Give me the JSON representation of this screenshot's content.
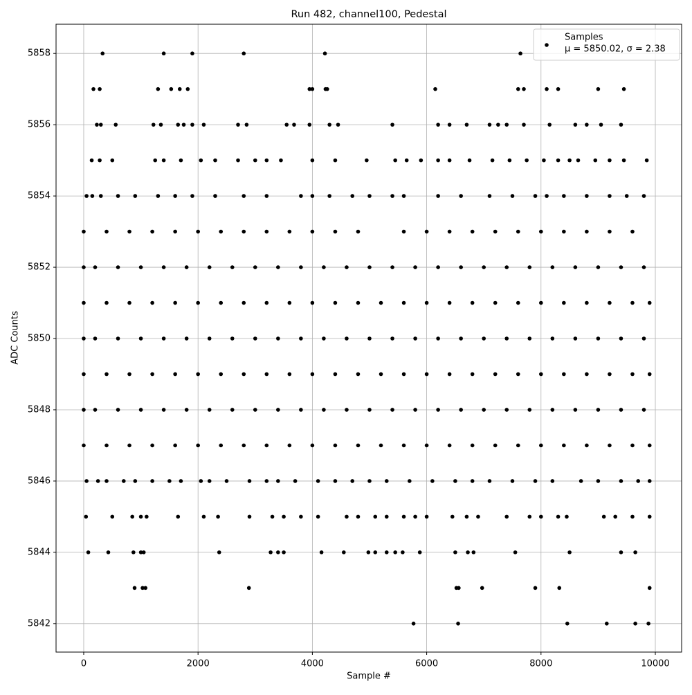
{
  "chart_data": {
    "type": "scatter",
    "title": "Run 482, channel100, Pedestal",
    "x_label": "Sample #",
    "y_label": "ADC Counts",
    "xlim": [
      -484,
      10460
    ],
    "ylim": [
      5841.2,
      5858.82
    ],
    "xticks": [
      0,
      2000,
      4000,
      6000,
      8000,
      10000
    ],
    "yticks": [
      5842,
      5844,
      5846,
      5848,
      5850,
      5852,
      5854,
      5856,
      5858
    ],
    "grid": true,
    "legend": "upper right",
    "series": [
      {
        "name": "Samples",
        "stats": "μ = 5850.02, σ = 2.38",
        "color": "#000000",
        "x": [
          0,
          400,
          800,
          1200,
          1600,
          2000,
          2400,
          2800,
          3200,
          3600,
          4000,
          4400,
          4800,
          5200,
          5600,
          6000,
          6400,
          6800,
          7200,
          7600,
          8000,
          8400,
          8800,
          9200,
          9600,
          9900,
          0,
          400,
          800,
          1200,
          1600,
          2000,
          2400,
          2800,
          3200,
          3600,
          4000,
          4400,
          4800,
          5200,
          5600,
          6000,
          6400,
          6800,
          7200,
          7600,
          8000,
          8400,
          8800,
          9200,
          9600,
          9900,
          0,
          400,
          800,
          1200,
          1600,
          2000,
          2400,
          2800,
          3200,
          3600,
          4000,
          4400,
          4800,
          5200,
          5600,
          6000,
          6400,
          6800,
          7200,
          7600,
          8000,
          8400,
          8800,
          9200,
          9600,
          9900,
          0,
          200,
          600,
          1000,
          1400,
          1800,
          2200,
          2600,
          3000,
          3400,
          3800,
          4200,
          4600,
          5000,
          5400,
          5800,
          6200,
          6600,
          7000,
          7400,
          7800,
          8200,
          8600,
          9000,
          9400,
          9800,
          0,
          200,
          600,
          1000,
          1400,
          1800,
          2200,
          2600,
          3000,
          3400,
          3800,
          4200,
          4600,
          5000,
          5400,
          5800,
          6200,
          6600,
          7000,
          7400,
          7800,
          8200,
          8600,
          9000,
          9400,
          9800,
          0,
          200,
          600,
          1000,
          1400,
          1800,
          2200,
          2600,
          3000,
          3400,
          3800,
          4200,
          4600,
          5000,
          5400,
          5800,
          6200,
          6600,
          7000,
          7400,
          7800,
          8200,
          8600,
          9000,
          9400,
          9800,
          0,
          400,
          800,
          1200,
          1600,
          2000,
          2400,
          2800,
          3200,
          3600,
          4000,
          4400,
          4800,
          5600,
          6000,
          6400,
          6800,
          7200,
          7600,
          8000,
          8400,
          8800,
          9200,
          9600,
          50,
          150,
          300,
          600,
          900,
          1300,
          1600,
          1900,
          2300,
          2800,
          3200,
          3800,
          4000,
          4300,
          4700,
          5000,
          5400,
          5600,
          6200,
          6600,
          7100,
          7500,
          7900,
          8100,
          8400,
          8800,
          9200,
          9500,
          9800,
          50,
          250,
          400,
          700,
          900,
          1200,
          1500,
          1700,
          2050,
          2200,
          2500,
          2900,
          3200,
          3400,
          3700,
          4100,
          4400,
          4700,
          5000,
          5300,
          5700,
          6100,
          6500,
          6800,
          7100,
          7500,
          7900,
          8200,
          8700,
          9000,
          9400,
          9700,
          9900,
          140,
          280,
          500,
          1250,
          1400,
          1700,
          2050,
          2300,
          2700,
          3000,
          3200,
          3450,
          4000,
          4400,
          4950,
          5450,
          5650,
          5900,
          6200,
          6400,
          6750,
          7150,
          7450,
          7750,
          8050,
          8300,
          8500,
          8650,
          8950,
          9200,
          9450,
          9850,
          40,
          500,
          850,
          1000,
          1100,
          1650,
          2100,
          2350,
          2900,
          3300,
          3500,
          3800,
          4100,
          4600,
          4800,
          5100,
          5300,
          5600,
          5800,
          6000,
          6450,
          6700,
          6900,
          7400,
          7800,
          8000,
          8300,
          8450,
          9100,
          9300,
          9600,
          9900,
          230,
          300,
          560,
          1220,
          1350,
          1650,
          1750,
          1900,
          2100,
          2700,
          2850,
          3550,
          3680,
          3950,
          4300,
          4450,
          5400,
          6200,
          6400,
          6700,
          7100,
          7250,
          7400,
          7700,
          8150,
          8600,
          8800,
          9050,
          9400,
          80,
          430,
          870,
          1000,
          1050,
          2370,
          3270,
          3400,
          3500,
          4160,
          4550,
          4980,
          5100,
          5300,
          5450,
          5580,
          5880,
          6500,
          6720,
          6820,
          7550,
          8500,
          9400,
          9650,
          170,
          280,
          1300,
          1530,
          1680,
          1820,
          3950,
          4000,
          4230,
          4260,
          6150,
          7600,
          7700,
          8100,
          8300,
          9000,
          9450,
          330,
          1400,
          1900,
          2800,
          4220,
          7640,
          890,
          1030,
          1080,
          2890,
          6520,
          6560,
          6970,
          7900,
          8320,
          9900,
          5770,
          6550,
          8460,
          9150,
          9650,
          9880
        ],
        "values": [
          5849,
          5849,
          5849,
          5849,
          5849,
          5849,
          5849,
          5849,
          5849,
          5849,
          5849,
          5849,
          5849,
          5849,
          5849,
          5849,
          5849,
          5849,
          5849,
          5849,
          5849,
          5849,
          5849,
          5849,
          5849,
          5849,
          5851,
          5851,
          5851,
          5851,
          5851,
          5851,
          5851,
          5851,
          5851,
          5851,
          5851,
          5851,
          5851,
          5851,
          5851,
          5851,
          5851,
          5851,
          5851,
          5851,
          5851,
          5851,
          5851,
          5851,
          5851,
          5851,
          5847,
          5847,
          5847,
          5847,
          5847,
          5847,
          5847,
          5847,
          5847,
          5847,
          5847,
          5847,
          5847,
          5847,
          5847,
          5847,
          5847,
          5847,
          5847,
          5847,
          5847,
          5847,
          5847,
          5847,
          5847,
          5847,
          5848,
          5848,
          5848,
          5848,
          5848,
          5848,
          5848,
          5848,
          5848,
          5848,
          5848,
          5848,
          5848,
          5848,
          5848,
          5848,
          5848,
          5848,
          5848,
          5848,
          5848,
          5848,
          5848,
          5848,
          5848,
          5848,
          5850,
          5850,
          5850,
          5850,
          5850,
          5850,
          5850,
          5850,
          5850,
          5850,
          5850,
          5850,
          5850,
          5850,
          5850,
          5850,
          5850,
          5850,
          5850,
          5850,
          5850,
          5850,
          5850,
          5850,
          5850,
          5850,
          5852,
          5852,
          5852,
          5852,
          5852,
          5852,
          5852,
          5852,
          5852,
          5852,
          5852,
          5852,
          5852,
          5852,
          5852,
          5852,
          5852,
          5852,
          5852,
          5852,
          5852,
          5852,
          5852,
          5852,
          5852,
          5852,
          5853,
          5853,
          5853,
          5853,
          5853,
          5853,
          5853,
          5853,
          5853,
          5853,
          5853,
          5853,
          5853,
          5853,
          5853,
          5853,
          5853,
          5853,
          5853,
          5853,
          5853,
          5853,
          5853,
          5853,
          5854,
          5854,
          5854,
          5854,
          5854,
          5854,
          5854,
          5854,
          5854,
          5854,
          5854,
          5854,
          5854,
          5854,
          5854,
          5854,
          5854,
          5854,
          5854,
          5854,
          5854,
          5854,
          5854,
          5854,
          5854,
          5854,
          5854,
          5854,
          5854,
          5846,
          5846,
          5846,
          5846,
          5846,
          5846,
          5846,
          5846,
          5846,
          5846,
          5846,
          5846,
          5846,
          5846,
          5846,
          5846,
          5846,
          5846,
          5846,
          5846,
          5846,
          5846,
          5846,
          5846,
          5846,
          5846,
          5846,
          5846,
          5846,
          5846,
          5846,
          5846,
          5846,
          5855,
          5855,
          5855,
          5855,
          5855,
          5855,
          5855,
          5855,
          5855,
          5855,
          5855,
          5855,
          5855,
          5855,
          5855,
          5855,
          5855,
          5855,
          5855,
          5855,
          5855,
          5855,
          5855,
          5855,
          5855,
          5855,
          5855,
          5855,
          5855,
          5855,
          5855,
          5855,
          5845,
          5845,
          5845,
          5845,
          5845,
          5845,
          5845,
          5845,
          5845,
          5845,
          5845,
          5845,
          5845,
          5845,
          5845,
          5845,
          5845,
          5845,
          5845,
          5845,
          5845,
          5845,
          5845,
          5845,
          5845,
          5845,
          5845,
          5845,
          5845,
          5845,
          5845,
          5845,
          5856,
          5856,
          5856,
          5856,
          5856,
          5856,
          5856,
          5856,
          5856,
          5856,
          5856,
          5856,
          5856,
          5856,
          5856,
          5856,
          5856,
          5856,
          5856,
          5856,
          5856,
          5856,
          5856,
          5856,
          5856,
          5856,
          5856,
          5856,
          5856,
          5844,
          5844,
          5844,
          5844,
          5844,
          5844,
          5844,
          5844,
          5844,
          5844,
          5844,
          5844,
          5844,
          5844,
          5844,
          5844,
          5844,
          5844,
          5844,
          5844,
          5844,
          5844,
          5844,
          5844,
          5857,
          5857,
          5857,
          5857,
          5857,
          5857,
          5857,
          5857,
          5857,
          5857,
          5857,
          5857,
          5857,
          5857,
          5857,
          5857,
          5857,
          5858,
          5858,
          5858,
          5858,
          5858,
          5858,
          5843,
          5843,
          5843,
          5843,
          5843,
          5843,
          5843,
          5843,
          5843,
          5843,
          5842,
          5842,
          5842,
          5842,
          5842,
          5842
        ]
      }
    ]
  }
}
